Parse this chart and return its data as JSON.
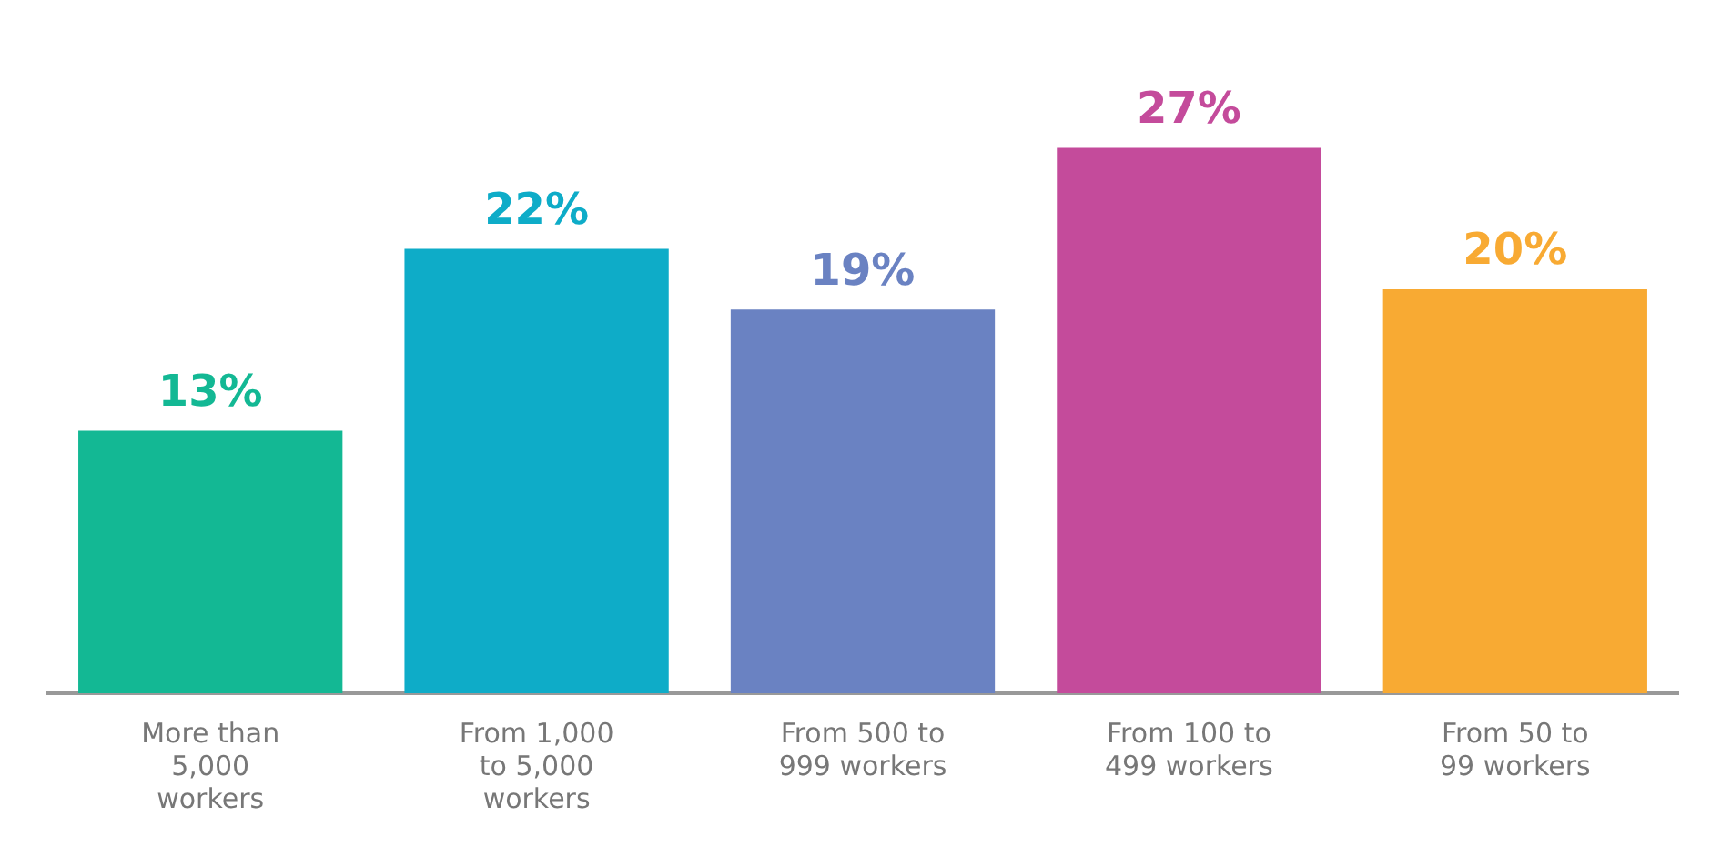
{
  "chart_data": {
    "type": "bar",
    "categories": [
      "More than 5,000 workers",
      "From 1,000 to 5,000 workers",
      "From 500 to 999 workers",
      "From 100 to 499 workers",
      "From 50 to 99 workers"
    ],
    "values": [
      13,
      22,
      19,
      27,
      20
    ],
    "colors": [
      "#13b894",
      "#0eacc8",
      "#6a82c2",
      "#c44b9b",
      "#f8aa33"
    ],
    "value_labels": [
      "13%",
      "22%",
      "19%",
      "27%",
      "20%"
    ],
    "grid": false,
    "legend": false
  }
}
